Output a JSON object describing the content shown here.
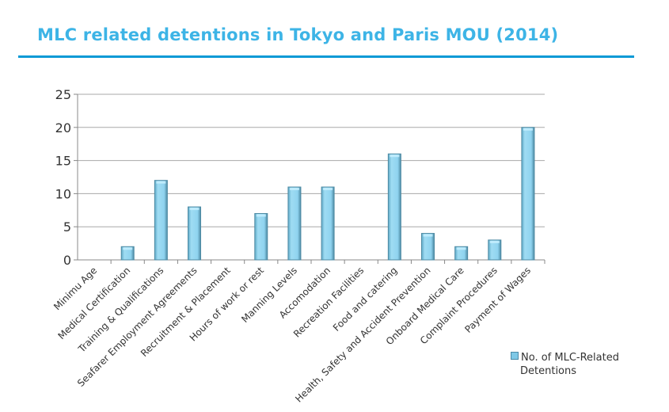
{
  "title": "MLC related detentions in Tokyo and Paris MOU (2014)",
  "colors": {
    "title": "#3db4e6",
    "rule": "#0a9ad6",
    "bar": "#8fd3ef",
    "bar_edge": "#4d8aa3"
  },
  "chart_data": {
    "type": "bar",
    "title": "",
    "xlabel": "",
    "ylabel": "",
    "ylim": [
      0,
      25
    ],
    "yticks": [
      "0",
      "5",
      "10",
      "15",
      "20",
      "25"
    ],
    "grid": true,
    "legend_position": "bottom-right",
    "categories": [
      "Minimu Age",
      "Medical Certification",
      "Training & Qualifications",
      "Seafarer Employment Agreements",
      "Recruitment & Placement",
      "Hours of work or rest",
      "Manning Levels",
      "Accomodation",
      "Recreation Facilities",
      "Food and catering",
      "Health, Safety and Accident Prevention",
      "Onboard Medical Care",
      "Complaint Procedures",
      "Payment of Wages"
    ],
    "series": [
      {
        "name": "No. of MLC-Related Detentions",
        "name_line1": "No. of MLC-Related",
        "name_line2": "Detentions",
        "values": [
          0,
          2,
          12,
          8,
          0,
          7,
          11,
          11,
          0,
          16,
          4,
          2,
          3,
          20
        ]
      }
    ]
  }
}
